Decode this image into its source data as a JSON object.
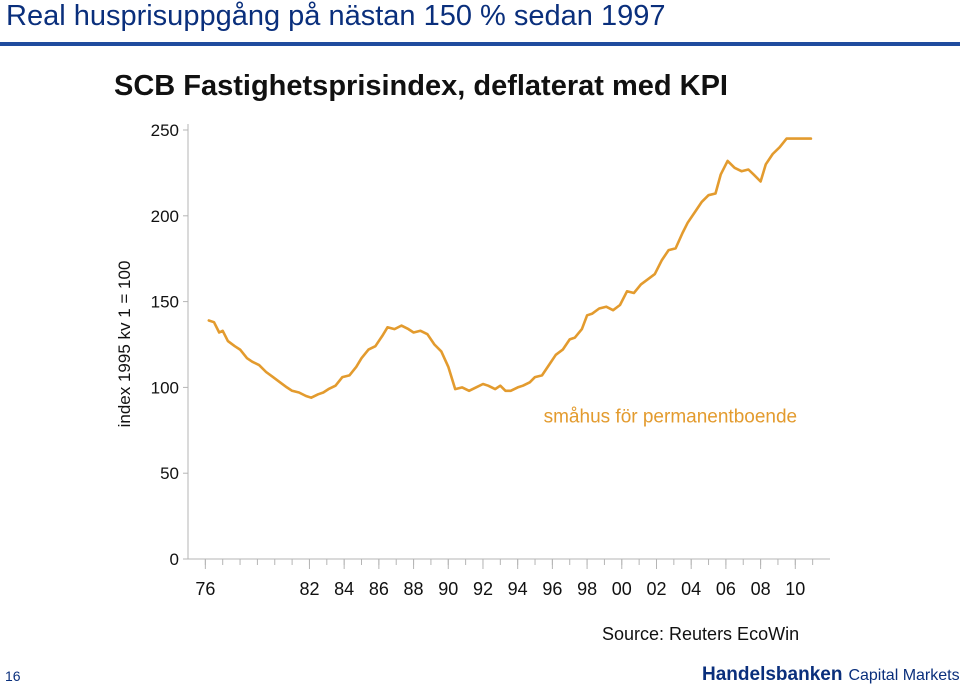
{
  "slide": {
    "title": "Real husprisuppgång på nästan 150 % sedan 1997",
    "page_number": "16",
    "source": "Source: Reuters EcoWin",
    "brand": {
      "name": "Handelsbanken",
      "suffix": "Capital Markets"
    },
    "colors": {
      "title": "#0a2f7c",
      "rule": "#1f4c9e",
      "series": "#e39b2e"
    }
  },
  "chart_data": {
    "type": "line",
    "title": "SCB Fastighetsprisindex, deflaterat med KPI",
    "ylabel": "index 1995 kv 1 = 100",
    "xlabel": "",
    "ylim": [
      0,
      250
    ],
    "xlim": [
      1975,
      2012
    ],
    "yticks": [
      0,
      50,
      100,
      150,
      200,
      250
    ],
    "xtick_values": [
      1976,
      1982,
      1984,
      1986,
      1988,
      1990,
      1992,
      1994,
      1996,
      1998,
      2000,
      2002,
      2004,
      2006,
      2008,
      2010
    ],
    "xtick_labels": [
      "76",
      "82",
      "84",
      "86",
      "88",
      "90",
      "92",
      "94",
      "96",
      "98",
      "00",
      "02",
      "04",
      "06",
      "08",
      "10"
    ],
    "grid": false,
    "series": [
      {
        "name": "småhus för permanentboende",
        "color": "#e39b2e",
        "x": [
          1976.2,
          1976.5,
          1976.8,
          1977.0,
          1977.3,
          1977.7,
          1978.0,
          1978.4,
          1978.7,
          1979.1,
          1979.5,
          1979.9,
          1980.3,
          1980.7,
          1981.0,
          1981.4,
          1981.8,
          1982.1,
          1982.5,
          1982.8,
          1983.1,
          1983.5,
          1983.9,
          1984.3,
          1984.7,
          1985.0,
          1985.4,
          1985.8,
          1986.2,
          1986.5,
          1986.9,
          1987.3,
          1987.7,
          1988.0,
          1988.4,
          1988.8,
          1989.2,
          1989.6,
          1990.0,
          1990.4,
          1990.8,
          1991.2,
          1991.6,
          1992.0,
          1992.3,
          1992.7,
          1993.0,
          1993.3,
          1993.6,
          1994.0,
          1994.3,
          1994.7,
          1995.0,
          1995.4,
          1995.8,
          1996.2,
          1996.6,
          1997.0,
          1997.3,
          1997.7,
          1998.0,
          1998.3,
          1998.7,
          1999.1,
          1999.5,
          1999.9,
          2000.3,
          2000.7,
          2001.1,
          2001.5,
          2001.9,
          2002.3,
          2002.7,
          2003.1,
          2003.5,
          2003.8,
          2004.2,
          2004.6,
          2005.0,
          2005.4,
          2005.7,
          2006.1,
          2006.5,
          2006.9,
          2007.3,
          2007.6,
          2008.0,
          2008.3,
          2008.7,
          2009.1,
          2009.5,
          2009.9,
          2010.2,
          2010.6,
          2010.9
        ],
        "y": [
          139,
          138,
          132,
          133,
          127,
          124,
          122,
          117,
          115,
          113,
          109,
          106,
          103,
          100,
          98,
          97,
          95,
          94,
          96,
          97,
          99,
          101,
          106,
          107,
          112,
          117,
          122,
          124,
          130,
          135,
          134,
          136,
          134,
          132,
          133,
          131,
          125,
          121,
          112,
          99,
          100,
          98,
          100,
          102,
          101,
          99,
          101,
          98,
          98,
          100,
          101,
          103,
          106,
          107,
          113,
          119,
          122,
          128,
          129,
          134,
          142,
          143,
          146,
          147,
          145,
          148,
          156,
          155,
          160,
          163,
          166,
          174,
          180,
          181,
          190,
          196,
          202,
          208,
          212,
          213,
          224,
          232,
          228,
          226,
          227,
          224,
          220,
          230,
          236,
          240,
          245,
          245,
          245,
          245,
          245
        ]
      }
    ],
    "annotations": [
      {
        "text": "småhus för permanentboende",
        "x": 2002.8,
        "y": 83
      }
    ]
  }
}
